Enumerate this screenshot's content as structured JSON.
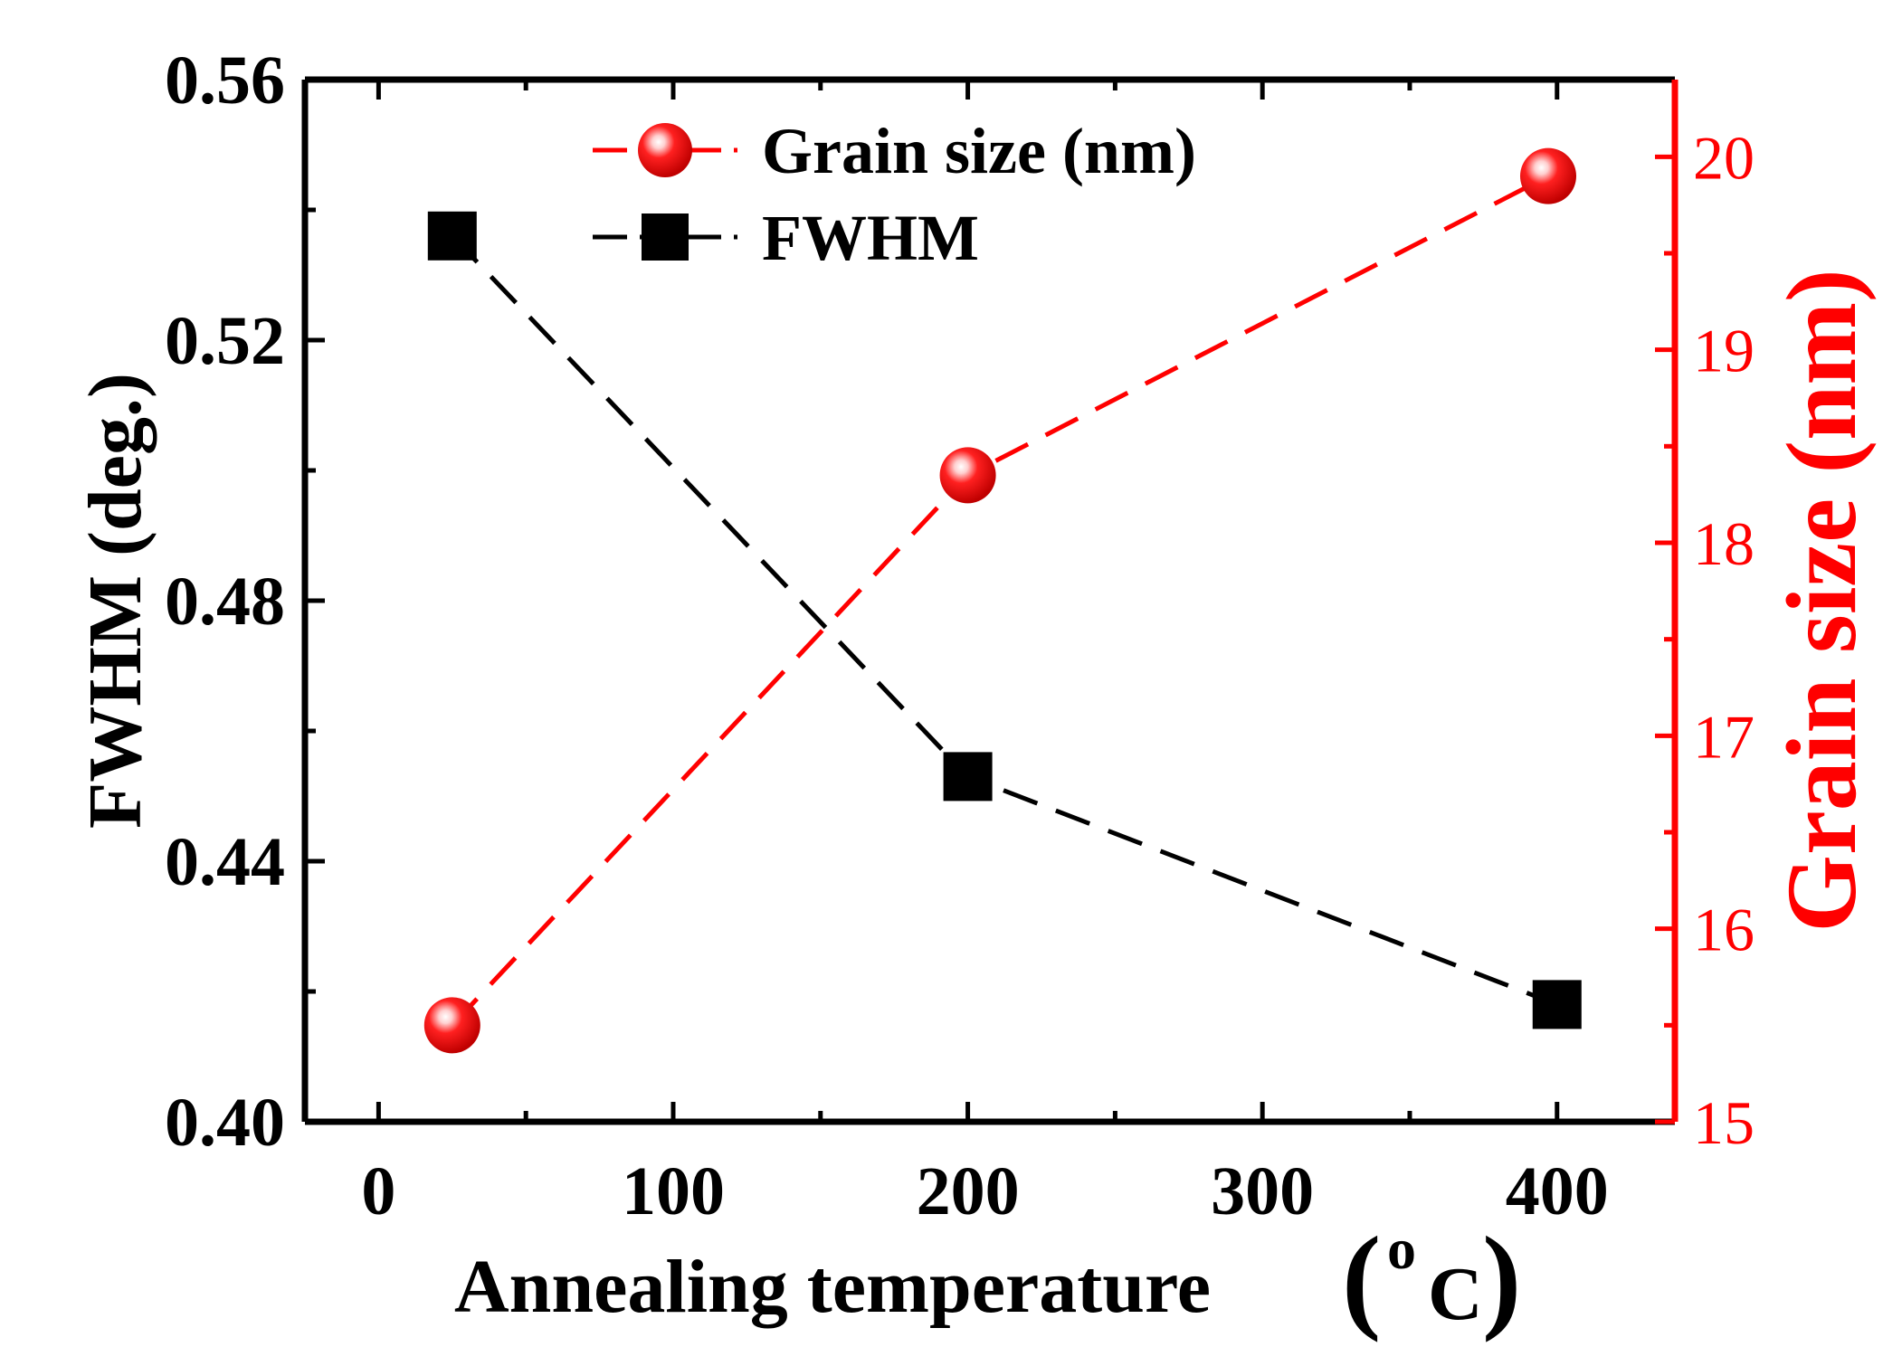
{
  "chart_data": {
    "type": "line",
    "x": [
      25,
      200,
      400
    ],
    "xlabel": "Annealing temperature",
    "xlabel_unit_degree": "o",
    "xlabel_unit_letter": "C",
    "xlim": [
      -25,
      440
    ],
    "xticks": [
      0,
      100,
      200,
      300,
      400
    ],
    "ylabel": "FWHM (deg.)",
    "ylim": [
      0.4,
      0.56
    ],
    "yticks": [
      "0.40",
      "0.44",
      "0.48",
      "0.52",
      "0.56"
    ],
    "y2label": "Grain size (nm)",
    "y2lim": [
      15,
      20.4
    ],
    "y2ticks": [
      15,
      16,
      17,
      18,
      19,
      20
    ],
    "series": [
      {
        "name": "Grain size (nm)",
        "axis": "right",
        "color": "#ff0000",
        "marker": "sphere",
        "linestyle": "dashed",
        "x": [
          25,
          200,
          397
        ],
        "values": [
          15.5,
          18.35,
          19.9
        ]
      },
      {
        "name": "FWHM",
        "axis": "left",
        "color": "#000000",
        "marker": "square",
        "linestyle": "dashed",
        "x": [
          25,
          200,
          400
        ],
        "values": [
          0.536,
          0.453,
          0.418
        ]
      }
    ],
    "legend_position": "top-left-center"
  }
}
